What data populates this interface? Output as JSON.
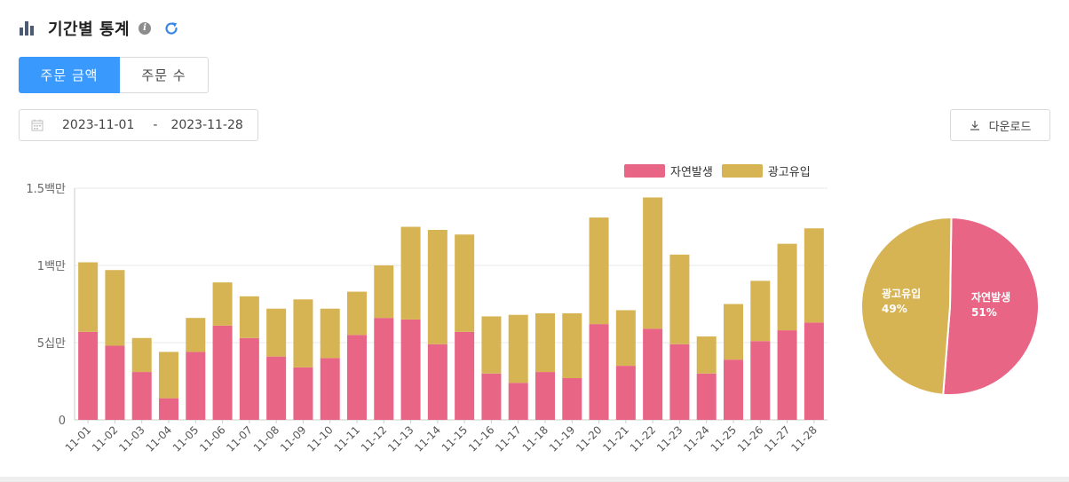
{
  "header": {
    "title": "기간별 통계",
    "info_icon": "info-icon",
    "refresh_icon": "refresh-icon"
  },
  "tabs": [
    {
      "label": "주문 금액",
      "active": true
    },
    {
      "label": "주문 수",
      "active": false
    }
  ],
  "date_range": {
    "start": "2023-11-01",
    "separator": "-",
    "end": "2023-11-28"
  },
  "download": {
    "label": "다운로드"
  },
  "colors": {
    "natural": "#e96585",
    "ad": "#d6b454",
    "accent": "#3a99fc"
  },
  "chart_data": [
    {
      "type": "bar",
      "stacked": true,
      "categories": [
        "11-01",
        "11-02",
        "11-03",
        "11-04",
        "11-05",
        "11-06",
        "11-07",
        "11-08",
        "11-09",
        "11-10",
        "11-11",
        "11-12",
        "11-13",
        "11-14",
        "11-15",
        "11-16",
        "11-17",
        "11-18",
        "11-19",
        "11-20",
        "11-21",
        "11-22",
        "11-23",
        "11-24",
        "11-25",
        "11-26",
        "11-27",
        "11-28"
      ],
      "series": [
        {
          "name": "자연발생",
          "color": "#e96585",
          "values": [
            570000,
            480000,
            310000,
            140000,
            440000,
            610000,
            530000,
            410000,
            340000,
            400000,
            550000,
            660000,
            650000,
            490000,
            570000,
            300000,
            240000,
            310000,
            270000,
            620000,
            350000,
            590000,
            490000,
            300000,
            390000,
            510000,
            580000,
            630000
          ]
        },
        {
          "name": "광고유입",
          "color": "#d6b454",
          "values": [
            450000,
            490000,
            220000,
            300000,
            220000,
            280000,
            270000,
            310000,
            440000,
            320000,
            280000,
            340000,
            600000,
            740000,
            630000,
            370000,
            440000,
            380000,
            420000,
            690000,
            360000,
            850000,
            580000,
            240000,
            360000,
            390000,
            560000,
            610000
          ]
        }
      ],
      "ylim": [
        0,
        1500000
      ],
      "yticks": [
        0,
        500000,
        1000000,
        1500000
      ],
      "ytick_labels": [
        "0",
        "5십만",
        "1백만",
        "1.5백만"
      ],
      "grid": true,
      "legend_placement": "top-right"
    },
    {
      "type": "pie",
      "slices": [
        {
          "name": "자연발생",
          "value": 51,
          "label": "51%",
          "color": "#e96585"
        },
        {
          "name": "광고유입",
          "value": 49,
          "label": "49%",
          "color": "#d6b454"
        }
      ]
    }
  ]
}
